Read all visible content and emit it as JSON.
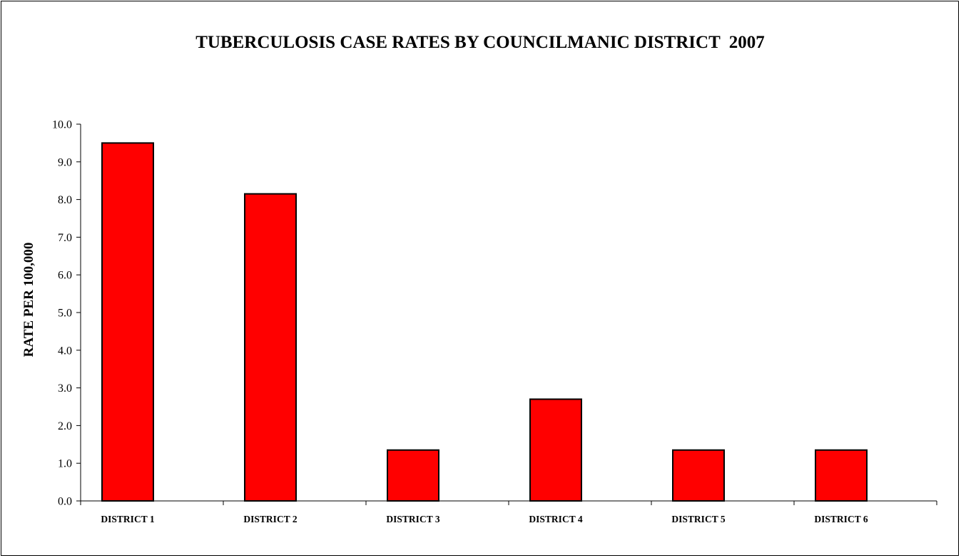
{
  "chart_data": {
    "type": "bar",
    "title": "TUBERCULOSIS CASE RATES BY COUNCILMANIC DISTRICT  2007",
    "xlabel": "",
    "ylabel": "RATE PER 100,000",
    "categories": [
      "DISTRICT 1",
      "DISTRICT 2",
      "DISTRICT 3",
      "DISTRICT 4",
      "DISTRICT 5",
      "DISTRICT 6"
    ],
    "values": [
      9.5,
      8.15,
      1.35,
      2.7,
      1.35,
      1.35
    ],
    "ylim": [
      0,
      10
    ],
    "yticks": [
      "0.0",
      "1.0",
      "2.0",
      "3.0",
      "4.0",
      "5.0",
      "6.0",
      "7.0",
      "8.0",
      "9.0",
      "10.0"
    ],
    "grid": false,
    "legend": "none",
    "bar_color": "#FF0000",
    "bar_edge_color": "#000000"
  }
}
